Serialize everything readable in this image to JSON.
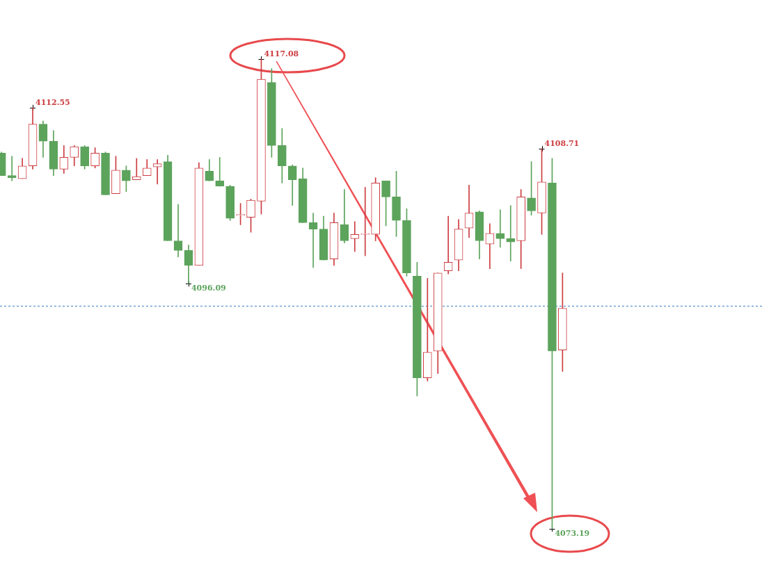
{
  "chart_data": {
    "type": "candlestick",
    "categories": [
      null,
      null,
      null,
      null,
      null,
      null,
      null,
      null,
      null,
      null,
      null,
      null,
      null,
      null,
      null,
      null,
      null,
      null,
      null,
      null,
      null,
      null,
      null,
      null,
      null,
      null,
      null,
      null,
      null,
      null,
      null,
      null,
      null,
      null,
      null,
      null,
      null,
      null,
      null,
      null,
      null,
      null,
      null,
      null,
      null,
      null,
      null,
      null,
      null,
      null,
      null,
      null,
      null,
      null,
      null
    ],
    "ohlc": [
      [
        4108.3,
        4108.4,
        4106.2,
        4106.2
      ],
      [
        4106.2,
        4108.0,
        4105.7,
        4106.0
      ],
      [
        4105.9,
        4107.8,
        4105.9,
        4107.1
      ],
      [
        4107.1,
        4112.55,
        4106.8,
        4111.0
      ],
      [
        4111.0,
        4111.3,
        4107.9,
        4109.4
      ],
      [
        4109.4,
        4110.4,
        4106.2,
        4106.8
      ],
      [
        4106.8,
        4109.0,
        4106.4,
        4107.9
      ],
      [
        4107.9,
        4109.0,
        4107.1,
        4108.9
      ],
      [
        4108.9,
        4109.0,
        4106.8,
        4107.1
      ],
      [
        4107.1,
        4108.8,
        4106.9,
        4108.3
      ],
      [
        4108.3,
        4108.4,
        4104.4,
        4104.4
      ],
      [
        4104.5,
        4108.0,
        4104.5,
        4106.7
      ],
      [
        4106.7,
        4107.1,
        4104.7,
        4105.7
      ],
      [
        4105.8,
        4107.8,
        4105.8,
        4106.1
      ],
      [
        4106.2,
        4107.7,
        4106.2,
        4106.9
      ],
      [
        4107.0,
        4107.7,
        4105.4,
        4107.3
      ],
      [
        4107.5,
        4108.1,
        4100.1,
        4100.1
      ],
      [
        4100.1,
        4103.5,
        4098.6,
        4099.2
      ],
      [
        4099.2,
        4099.7,
        4096.09,
        4097.8
      ],
      [
        4097.8,
        4107.4,
        4097.8,
        4106.9
      ],
      [
        4106.6,
        4107.7,
        4105.7,
        4105.7
      ],
      [
        4105.7,
        4107.9,
        4105.2,
        4105.2
      ],
      [
        4105.2,
        4105.3,
        4102.0,
        4102.2
      ],
      [
        4102.5,
        4103.6,
        4101.6,
        4102.5
      ],
      [
        4102.3,
        4104.0,
        4100.9,
        4103.9
      ],
      [
        4103.8,
        4117.08,
        4102.6,
        4115.2
      ],
      [
        4114.9,
        4116.2,
        4107.9,
        4109.0
      ],
      [
        4109.0,
        4110.6,
        4105.5,
        4107.1
      ],
      [
        4107.1,
        4107.2,
        4103.4,
        4105.8
      ],
      [
        4105.9,
        4106.9,
        4101.8,
        4101.8
      ],
      [
        4101.8,
        4102.7,
        4097.6,
        4101.2
      ],
      [
        4101.2,
        4102.4,
        4098.3,
        4098.3
      ],
      [
        4098.4,
        4102.7,
        4097.8,
        4101.8
      ],
      [
        4101.6,
        4104.9,
        4099.9,
        4100.1
      ],
      [
        4100.3,
        4101.9,
        4099.1,
        4100.7
      ],
      [
        4100.7,
        4105.1,
        4098.7,
        4100.7
      ],
      [
        4100.7,
        4106.0,
        4100.1,
        4105.5
      ],
      [
        4105.7,
        4105.7,
        4101.5,
        4104.2
      ],
      [
        4104.2,
        4106.6,
        4100.5,
        4102.0
      ],
      [
        4102.0,
        4103.1,
        4096.8,
        4097.1
      ],
      [
        4096.8,
        4098.1,
        4085.6,
        4087.3
      ],
      [
        4087.3,
        4096.6,
        4087.0,
        4089.7
      ],
      [
        4089.8,
        4097.1,
        4087.7,
        4097.1
      ],
      [
        4097.3,
        4102.4,
        4097.0,
        4098.1
      ],
      [
        4098.3,
        4102.1,
        4097.3,
        4101.2
      ],
      [
        4101.3,
        4105.3,
        4100.4,
        4102.7
      ],
      [
        4102.8,
        4102.9,
        4098.4,
        4100.1
      ],
      [
        4099.8,
        4101.7,
        4097.5,
        4100.8
      ],
      [
        4100.8,
        4103.0,
        4099.5,
        4100.3
      ],
      [
        4100.3,
        4103.4,
        4098.2,
        4100.0
      ],
      [
        4100.1,
        4104.9,
        4097.5,
        4104.2
      ],
      [
        4104.1,
        4107.5,
        4102.5,
        4102.9
      ],
      [
        4102.7,
        4108.71,
        4100.7,
        4105.6
      ],
      [
        4105.5,
        4107.8,
        4073.19,
        4089.8
      ],
      [
        4089.9,
        4097.1,
        4087.9,
        4093.8
      ]
    ],
    "colors": [
      "#5ca35c",
      "#5ca35c",
      "#cc3c40",
      "#cc3c40",
      "#5ca35c",
      "#5ca35c",
      "#cc3c40",
      "#cc3c40",
      "#5ca35c",
      "#cc3c40",
      "#5ca35c",
      "#cc3c40",
      "#5ca35c",
      "#cc3c40",
      "#cc3c40",
      "#cc3c40",
      "#5ca35c",
      "#5ca35c",
      "#5ca35c",
      "#cc3c40",
      "#5ca35c",
      "#5ca35c",
      "#5ca35c",
      "#cc3c40",
      "#cc3c40",
      "#cc3c40",
      "#5ca35c",
      "#5ca35c",
      "#5ca35c",
      "#5ca35c",
      "#5ca35c",
      "#5ca35c",
      "#cc3c40",
      "#5ca35c",
      "#cc3c40",
      "#cc3c40",
      "#cc3c40",
      "#5ca35c",
      "#5ca35c",
      "#5ca35c",
      "#5ca35c",
      "#cc3c40",
      "#cc3c40",
      "#cc3c40",
      "#cc3c40",
      "#cc3c40",
      "#5ca35c",
      "#cc3c40",
      "#5ca35c",
      "#5ca35c",
      "#cc3c40",
      "#5ca35c",
      "#cc3c40",
      "#5ca35c",
      "#cc3c40"
    ],
    "annotations": [
      "4112.55",
      "4117.08",
      "4096.09",
      "4108.71",
      "4073.19"
    ],
    "ref_lines": [
      {
        "axis": "y",
        "value": 4094.0,
        "color": "#3a80c0",
        "line_style": "dashed"
      }
    ]
  }
}
